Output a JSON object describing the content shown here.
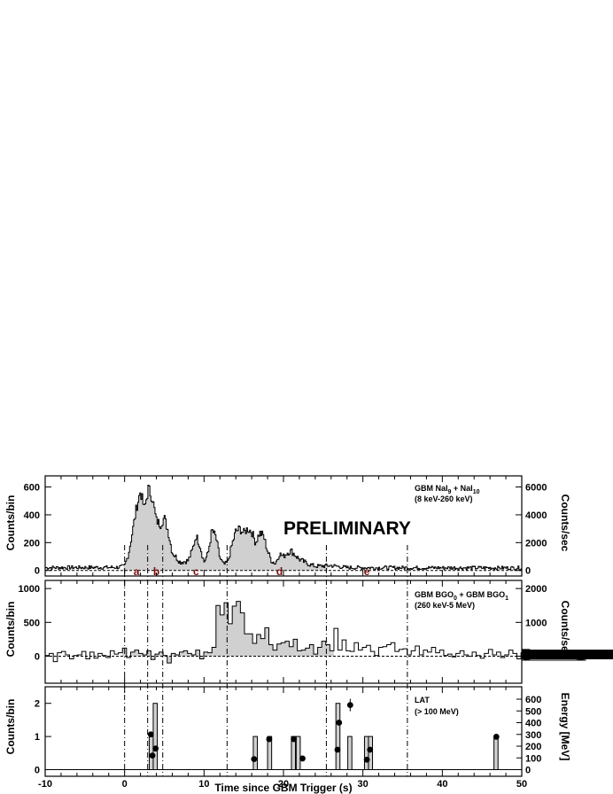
{
  "chart_data": [
    {
      "type": "area",
      "panel": "GBM NaI",
      "annotation_lines": [
        "GBM NaI9 + NaI10",
        "(8 keV-260 keV)"
      ],
      "watermark": "PRELIMINARY",
      "xlabel": "Time since GBM Trigger (s)",
      "ylabel": "Counts/bin",
      "ylabel_right": "Counts/sec",
      "xlim": [
        -10,
        50
      ],
      "ylim": [
        -40,
        680
      ],
      "yticks": [
        0,
        200,
        400,
        600
      ],
      "yticks_right": [
        0,
        2000,
        4000,
        6000
      ],
      "right_axis_factor": 10,
      "segment_labels": [
        {
          "label": "a",
          "x": 1.5
        },
        {
          "label": "b",
          "x": 4.0
        },
        {
          "label": "c",
          "x": 9.0
        },
        {
          "label": "d",
          "x": 19.5
        },
        {
          "label": "e",
          "x": 30.5
        }
      ],
      "profile": [
        [
          -10,
          20
        ],
        [
          -1,
          22
        ],
        [
          0,
          30
        ],
        [
          0.5,
          120
        ],
        [
          1,
          280
        ],
        [
          1.5,
          450
        ],
        [
          2,
          570
        ],
        [
          2.5,
          440
        ],
        [
          3,
          590
        ],
        [
          3.5,
          520
        ],
        [
          4,
          360
        ],
        [
          4.5,
          330
        ],
        [
          5,
          380
        ],
        [
          5.5,
          280
        ],
        [
          6,
          130
        ],
        [
          7,
          60
        ],
        [
          8,
          70
        ],
        [
          8.5,
          140
        ],
        [
          9,
          250
        ],
        [
          9.5,
          180
        ],
        [
          10,
          60
        ],
        [
          10.5,
          120
        ],
        [
          11,
          290
        ],
        [
          11.5,
          240
        ],
        [
          12,
          90
        ],
        [
          12.5,
          40
        ],
        [
          13,
          60
        ],
        [
          13.5,
          180
        ],
        [
          14,
          280
        ],
        [
          14.5,
          300
        ],
        [
          15,
          270
        ],
        [
          15.5,
          300
        ],
        [
          16,
          280
        ],
        [
          16.5,
          200
        ],
        [
          17,
          270
        ],
        [
          17.5,
          250
        ],
        [
          18,
          140
        ],
        [
          18.5,
          70
        ],
        [
          19,
          50
        ],
        [
          19.5,
          120
        ],
        [
          20,
          100
        ],
        [
          20.5,
          130
        ],
        [
          21,
          140
        ],
        [
          21.5,
          110
        ],
        [
          22,
          80
        ],
        [
          23,
          50
        ],
        [
          24,
          30
        ],
        [
          26,
          35
        ],
        [
          28,
          20
        ],
        [
          50,
          18
        ]
      ]
    },
    {
      "type": "area",
      "panel": "GBM BGO",
      "annotation_lines": [
        "GBM BGO0 + GBM BGO1",
        "(260 keV-5 MeV)"
      ],
      "ylabel": "Counts/bin",
      "ylabel_right": "Counts/sec",
      "xlim": [
        -10,
        50
      ],
      "ylim": [
        -400,
        1120
      ],
      "yticks": [
        0,
        500,
        1000
      ],
      "yticks_right": [
        0,
        1000,
        2000
      ],
      "right_axis_factor": 2,
      "bin_start": -10,
      "bin_width": 0.512,
      "values": [
        10,
        40,
        -80,
        50,
        70,
        20,
        -40,
        10,
        20,
        70,
        -40,
        60,
        -30,
        40,
        10,
        -20,
        80,
        30,
        50,
        120,
        -20,
        60,
        90,
        40,
        20,
        80,
        -50,
        30,
        60,
        10,
        -100,
        40,
        20,
        60,
        80,
        40,
        20,
        90,
        -40,
        60,
        50,
        130,
        750,
        610,
        790,
        480,
        740,
        810,
        640,
        330,
        330,
        190,
        320,
        260,
        420,
        170,
        90,
        180,
        200,
        220,
        140,
        250,
        80,
        90,
        120,
        170,
        30,
        130,
        220,
        170,
        80,
        410,
        90,
        240,
        80,
        70,
        200,
        90,
        130,
        160,
        70,
        10,
        130,
        140,
        170,
        200,
        70,
        100,
        110,
        20,
        80,
        150,
        20,
        90,
        60,
        130,
        50,
        90,
        10,
        30,
        -10,
        40,
        80,
        20,
        0,
        60,
        10,
        -30,
        40,
        100,
        20,
        60,
        -20,
        20,
        90,
        40,
        -40,
        50,
        10,
        100,
        30,
        30,
        10,
        50,
        40,
        70,
        -20,
        90,
        30,
        20,
        50,
        10,
        60,
        -60,
        90,
        40,
        20,
        80,
        0,
        30,
        60,
        10,
        50,
        -40,
        70,
        30,
        40,
        10,
        90,
        -20,
        20,
        60,
        -10,
        40,
        30,
        80,
        20,
        50,
        -20,
        40,
        10,
        60,
        30,
        50,
        20,
        70,
        -30,
        40,
        10,
        30,
        60,
        -10,
        20,
        40,
        30
      ]
    },
    {
      "type": "bar",
      "panel": "LAT",
      "annotation_lines": [
        "LAT",
        "(> 100 MeV)"
      ],
      "ylabel": "Counts/bin",
      "ylabel_right": "Energy [MeV]",
      "xlim": [
        -10,
        50
      ],
      "ylim": [
        -0.2,
        2.5
      ],
      "yticks": [
        0,
        1,
        2
      ],
      "yticks_right": [
        0,
        100,
        200,
        300,
        400,
        500,
        600
      ],
      "bin_width": 0.512,
      "bars": [
        {
          "x0": 3.1,
          "count": 1
        },
        {
          "x0": 3.6,
          "count": 2
        },
        {
          "x0": 16.2,
          "count": 1
        },
        {
          "x0": 18.0,
          "count": 1
        },
        {
          "x0": 21.0,
          "count": 1
        },
        {
          "x0": 21.6,
          "count": 1
        },
        {
          "x0": 26.6,
          "count": 2
        },
        {
          "x0": 28.1,
          "count": 1
        },
        {
          "x0": 30.2,
          "count": 1
        },
        {
          "x0": 30.7,
          "count": 1
        },
        {
          "x0": 46.5,
          "count": 1
        }
      ],
      "photons": [
        {
          "t": 3.3,
          "energy_mev": 300
        },
        {
          "t": 3.5,
          "energy_mev": 120
        },
        {
          "t": 3.9,
          "energy_mev": 180
        },
        {
          "t": 16.3,
          "energy_mev": 90
        },
        {
          "t": 18.2,
          "energy_mev": 260
        },
        {
          "t": 21.3,
          "energy_mev": 260
        },
        {
          "t": 22.4,
          "energy_mev": 95
        },
        {
          "t": 26.8,
          "energy_mev": 170
        },
        {
          "t": 27.0,
          "energy_mev": 400
        },
        {
          "t": 28.4,
          "energy_mev": 550
        },
        {
          "t": 30.5,
          "energy_mev": 85
        },
        {
          "t": 30.9,
          "energy_mev": 170
        },
        {
          "t": 46.8,
          "energy_mev": 280
        }
      ]
    }
  ],
  "shared": {
    "xticks": [
      -10,
      0,
      10,
      20,
      30,
      40,
      50
    ],
    "interval_boundaries": [
      0,
      2.9,
      4.8,
      12.9,
      25.4,
      35.6
    ]
  }
}
